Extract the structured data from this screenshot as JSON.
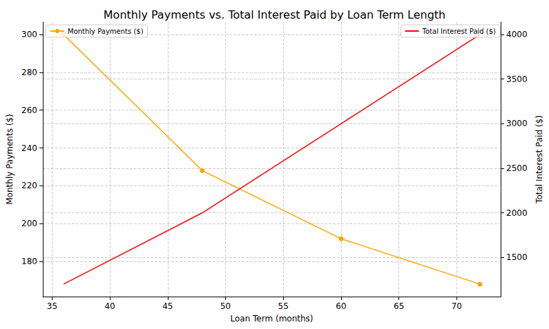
{
  "chart_data": {
    "type": "line",
    "title": "Monthly Payments vs. Total Interest Paid by Loan Term Length",
    "x_label": "Loan Term (months)",
    "y_label": "Monthly Payments ($)",
    "y2_label": "Total Interest Paid ($)",
    "x": [
      36,
      48,
      60,
      72
    ],
    "series": [
      {
        "name": "Monthly Payments ($)",
        "color": "#ffa500",
        "marker": "o",
        "line_style": "solid",
        "legend": "upper left",
        "values": [
          300,
          228,
          192,
          168
        ]
      },
      {
        "name": "Total Interest Paid ($)",
        "color": "#ff0000",
        "marker": "none",
        "line_style": "solid",
        "legend": "upper right",
        "axis": "y2",
        "values": [
          1200,
          2000,
          3000,
          4000
        ]
      }
    ],
    "xlim": [
      34.2,
      73.8
    ],
    "xticks": [
      35,
      40,
      45,
      50,
      55,
      60,
      65,
      70
    ],
    "ylim": [
      161.4,
      306.6
    ],
    "yticks": [
      180,
      200,
      220,
      240,
      260,
      280,
      300
    ],
    "y2lim": [
      1060,
      4140
    ],
    "y2ticks": [
      1500,
      2000,
      2500,
      3000,
      3500,
      4000
    ],
    "grid": true
  }
}
